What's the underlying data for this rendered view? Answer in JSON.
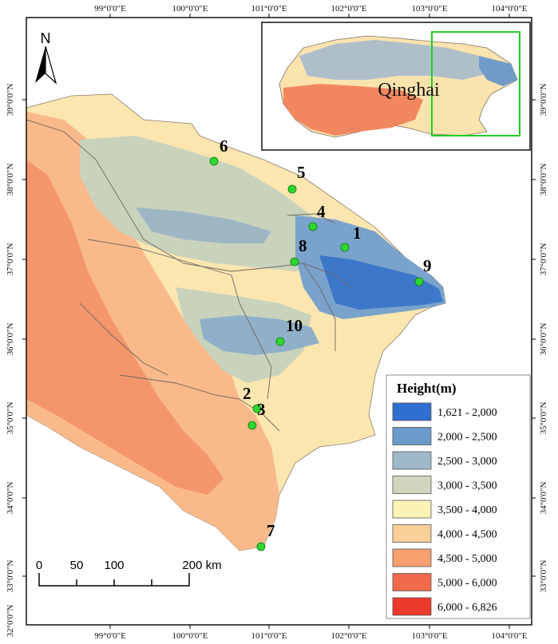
{
  "top_ticks": [
    "99°0'0\"E",
    "100°0'0\"E",
    "101°0'0\"E",
    "102°0'0\"E",
    "103°0'0\"E",
    "104°0'0\"E"
  ],
  "bottom_ticks": [
    "99°0'0\"E",
    "100°0'0\"E",
    "101°0'0\"E",
    "102°0'0\"E",
    "103°0'0\"E",
    "104°0'0\"E"
  ],
  "left_ticks": [
    "39°0'0\"N",
    "38°0'0\"N",
    "37°0'0\"N",
    "36°0'0\"N",
    "35°0'0\"N",
    "34°0'0\"N",
    "33°0'0\"N",
    "32°0'0\"N"
  ],
  "right_ticks": [
    "39°0'0\"N",
    "38°0'0\"N",
    "37°0'0\"N",
    "36°0'0\"N",
    "35°0'0\"N",
    "34°0'0\"N",
    "33°0'0\"N"
  ],
  "north_arrow": {
    "label": "N",
    "icon": "north-arrow-icon"
  },
  "inset": {
    "label": "Qinghai",
    "highlight_color": "#22cc22"
  },
  "sites": [
    {
      "id": "1"
    },
    {
      "id": "2"
    },
    {
      "id": "3"
    },
    {
      "id": "4"
    },
    {
      "id": "5"
    },
    {
      "id": "6"
    },
    {
      "id": "7"
    },
    {
      "id": "8"
    },
    {
      "id": "9"
    },
    {
      "id": "10"
    }
  ],
  "site_color": "#2ed82e",
  "legend": {
    "title": "Height(m)",
    "items": [
      {
        "label": "1,621 - 2,000",
        "color": "#2f6fcf"
      },
      {
        "label": "2,000 - 2,500",
        "color": "#6a9ac9"
      },
      {
        "label": "2,500 - 3,000",
        "color": "#9fb8c8"
      },
      {
        "label": "3,000 - 3,500",
        "color": "#cfd6bd"
      },
      {
        "label": "3,500 - 4,000",
        "color": "#fbf2b6"
      },
      {
        "label": "4,000 - 4,500",
        "color": "#fbcf98"
      },
      {
        "label": "4,500 - 5,000",
        "color": "#f8a070"
      },
      {
        "label": "5,000 - 6,000",
        "color": "#f26a4c"
      },
      {
        "label": "6,000 - 6,826",
        "color": "#ee3a2c"
      }
    ]
  },
  "scale_bar": {
    "labels": [
      "0",
      "50",
      "100",
      "200 km"
    ]
  }
}
